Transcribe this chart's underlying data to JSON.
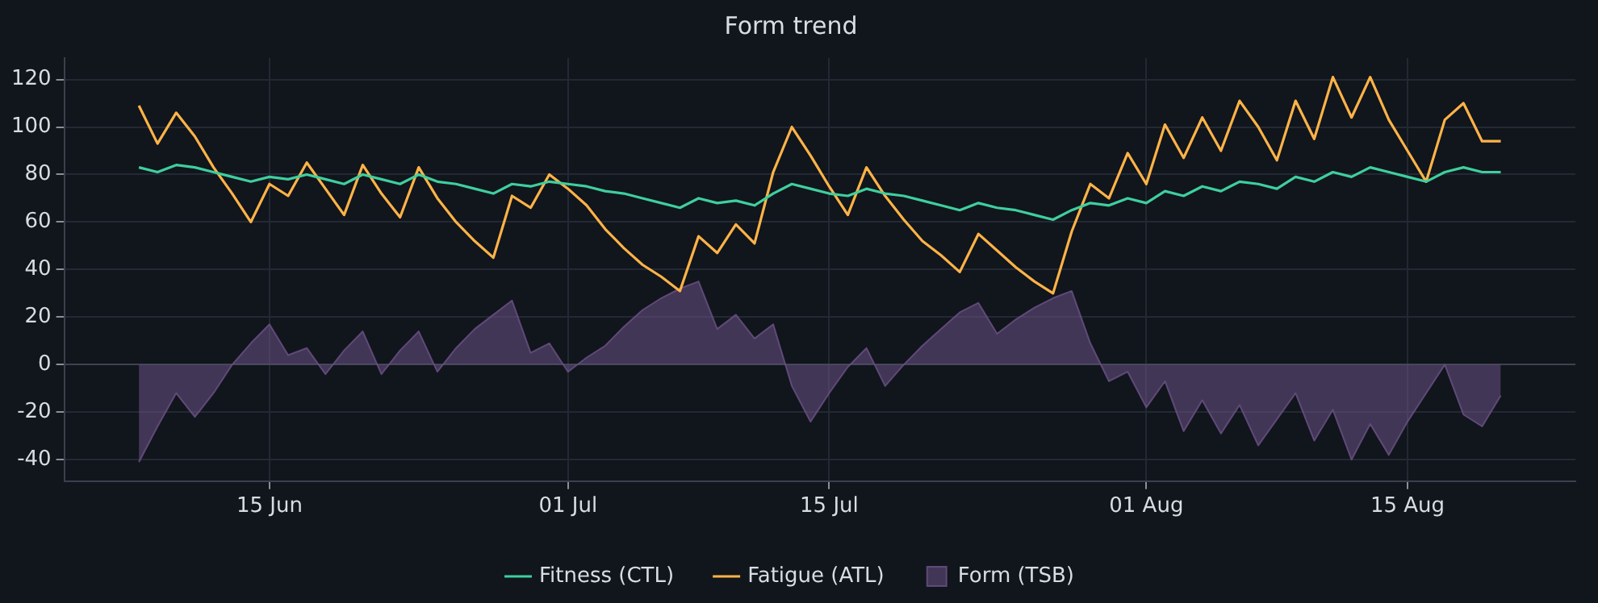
{
  "chart_data": {
    "type": "line",
    "title": "Form trend",
    "x": [
      "--06-08",
      "--06-09",
      "--06-10",
      "--06-11",
      "--06-12",
      "--06-13",
      "--06-14",
      "--06-15",
      "--06-16",
      "--06-17",
      "--06-18",
      "--06-19",
      "--06-20",
      "--06-21",
      "--06-22",
      "--06-23",
      "--06-24",
      "--06-25",
      "--06-26",
      "--06-27",
      "--06-28",
      "--06-29",
      "--06-30",
      "--07-01",
      "--07-02",
      "--07-03",
      "--07-04",
      "--07-05",
      "--07-06",
      "--07-07",
      "--07-08",
      "--07-09",
      "--07-10",
      "--07-11",
      "--07-12",
      "--07-13",
      "--07-14",
      "--07-15",
      "--07-16",
      "--07-17",
      "--07-18",
      "--07-19",
      "--07-20",
      "--07-21",
      "--07-22",
      "--07-23",
      "--07-24",
      "--07-25",
      "--07-26",
      "--07-27",
      "--07-28",
      "--07-29",
      "--07-30",
      "--07-31",
      "--08-01",
      "--08-02",
      "--08-03",
      "--08-04",
      "--08-05",
      "--08-06",
      "--08-07",
      "--08-08",
      "--08-09",
      "--08-10",
      "--08-11",
      "--08-12",
      "--08-13",
      "--08-14",
      "--08-15",
      "--08-16",
      "--08-17",
      "--08-18",
      "--08-19",
      "--08-20"
    ],
    "series": [
      {
        "name": "Fitness (CTL)",
        "color": "#3ecf9e",
        "values": [
          83,
          81,
          84,
          83,
          81,
          79,
          77,
          79,
          78,
          80,
          78,
          76,
          80,
          78,
          76,
          80,
          77,
          76,
          74,
          72,
          76,
          75,
          77,
          76,
          75,
          73,
          72,
          70,
          68,
          66,
          70,
          68,
          69,
          67,
          72,
          76,
          74,
          72,
          71,
          74,
          72,
          71,
          69,
          67,
          65,
          68,
          66,
          65,
          63,
          61,
          65,
          68,
          67,
          70,
          68,
          73,
          71,
          75,
          73,
          77,
          76,
          74,
          79,
          77,
          81,
          79,
          83,
          81,
          79,
          77,
          81,
          83,
          81,
          81
        ]
      },
      {
        "name": "Fatigue (ATL)",
        "color": "#ffb347",
        "values": [
          109,
          93,
          106,
          96,
          83,
          72,
          60,
          76,
          71,
          85,
          74,
          63,
          84,
          72,
          62,
          83,
          70,
          60,
          52,
          45,
          71,
          66,
          80,
          74,
          67,
          57,
          49,
          42,
          37,
          31,
          54,
          47,
          59,
          51,
          81,
          100,
          88,
          75,
          63,
          83,
          71,
          61,
          52,
          46,
          39,
          55,
          48,
          41,
          35,
          30,
          56,
          76,
          70,
          89,
          76,
          101,
          87,
          104,
          90,
          111,
          100,
          86,
          111,
          95,
          121,
          104,
          121,
          103,
          90,
          77,
          103,
          110,
          94,
          94
        ]
      },
      {
        "name": "Form (TSB)",
        "type": "area",
        "color": "#6b5287",
        "values": [
          -41,
          -26,
          -12,
          -22,
          -12,
          0,
          9,
          17,
          4,
          7,
          -4,
          6,
          14,
          -4,
          6,
          14,
          -3,
          7,
          15,
          21,
          27,
          5,
          9,
          -3,
          3,
          8,
          16,
          23,
          28,
          32,
          35,
          15,
          21,
          11,
          17,
          -9,
          -24,
          -12,
          -1,
          7,
          -9,
          0,
          8,
          15,
          22,
          26,
          13,
          19,
          24,
          28,
          31,
          9,
          -7,
          -3,
          -18,
          -7,
          -28,
          -15,
          -29,
          -17,
          -34,
          -23,
          -12,
          -32,
          -19,
          -40,
          -25,
          -38,
          -24,
          -12,
          0,
          -21,
          -26,
          -13
        ]
      }
    ],
    "xlim": [
      "--06-04",
      "--08-24"
    ],
    "xticks": [
      {
        "value": "--06-15",
        "label": "15 Jun"
      },
      {
        "value": "--07-01",
        "label": "01 Jul"
      },
      {
        "value": "--07-15",
        "label": "15 Jul"
      },
      {
        "value": "--08-01",
        "label": "01 Aug"
      },
      {
        "value": "--08-15",
        "label": "15 Aug"
      }
    ],
    "ylim": [
      -49,
      129
    ],
    "yticks": [
      -40,
      -20,
      0,
      20,
      40,
      60,
      80,
      100,
      120
    ],
    "grid": true,
    "legend": "bottom"
  }
}
